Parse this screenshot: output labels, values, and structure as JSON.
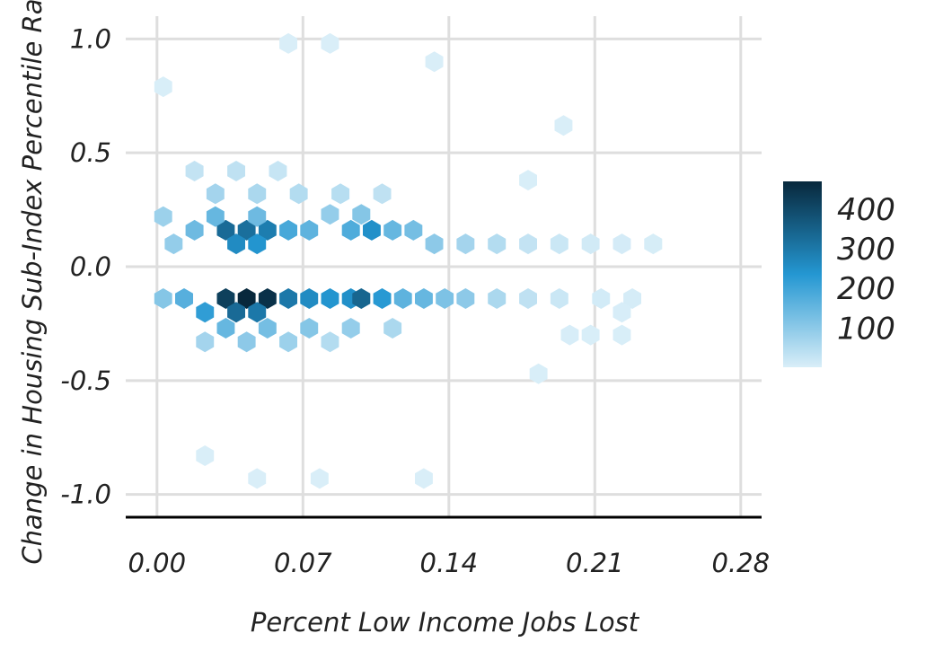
{
  "chart_data": {
    "type": "heatmap",
    "subtype": "hexbin",
    "xlabel": "Percent Low Income Jobs Lost",
    "ylabel": "Change in Housing Sub-Index Percentile Rank",
    "xlim": [
      -0.015,
      0.29
    ],
    "ylim": [
      -1.1,
      1.1
    ],
    "x_ticks": [
      0.0,
      0.07,
      0.14,
      0.21,
      0.28
    ],
    "x_tick_labels": [
      "0.00",
      "0.07",
      "0.14",
      "0.21",
      "0.28"
    ],
    "y_ticks": [
      1.0,
      0.5,
      0.0,
      -0.5,
      -1.0
    ],
    "y_tick_labels": [
      "1.0",
      "0.5",
      "0.0",
      "-0.5",
      "-1.0"
    ],
    "grid": true,
    "color_scale": {
      "low_color": "#d9eef8",
      "mid_color": "#2497d2",
      "high_color": "#08283c",
      "min": 1,
      "max": 470
    },
    "legend": {
      "position": "right",
      "ticks": [
        400,
        300,
        200,
        100
      ],
      "tick_labels": [
        "400",
        "300",
        "200",
        "100"
      ]
    },
    "bins": [
      {
        "x": 0.033,
        "y": -0.14,
        "count": 420
      },
      {
        "x": 0.043,
        "y": -0.14,
        "count": 470
      },
      {
        "x": 0.053,
        "y": -0.14,
        "count": 450
      },
      {
        "x": 0.063,
        "y": -0.14,
        "count": 300
      },
      {
        "x": 0.073,
        "y": -0.14,
        "count": 260
      },
      {
        "x": 0.083,
        "y": -0.14,
        "count": 240
      },
      {
        "x": 0.093,
        "y": -0.14,
        "count": 250
      },
      {
        "x": 0.098,
        "y": -0.14,
        "count": 340
      },
      {
        "x": 0.108,
        "y": -0.14,
        "count": 230
      },
      {
        "x": 0.118,
        "y": -0.14,
        "count": 160
      },
      {
        "x": 0.128,
        "y": -0.14,
        "count": 150
      },
      {
        "x": 0.138,
        "y": -0.14,
        "count": 120
      },
      {
        "x": 0.148,
        "y": -0.14,
        "count": 100
      },
      {
        "x": 0.038,
        "y": -0.2,
        "count": 330
      },
      {
        "x": 0.048,
        "y": -0.2,
        "count": 300
      },
      {
        "x": 0.023,
        "y": -0.2,
        "count": 220
      },
      {
        "x": 0.013,
        "y": -0.14,
        "count": 170
      },
      {
        "x": 0.003,
        "y": -0.14,
        "count": 110
      },
      {
        "x": 0.033,
        "y": 0.16,
        "count": 330
      },
      {
        "x": 0.043,
        "y": 0.16,
        "count": 320
      },
      {
        "x": 0.053,
        "y": 0.16,
        "count": 290
      },
      {
        "x": 0.038,
        "y": 0.1,
        "count": 260
      },
      {
        "x": 0.048,
        "y": 0.1,
        "count": 240
      },
      {
        "x": 0.103,
        "y": 0.16,
        "count": 250
      },
      {
        "x": 0.093,
        "y": 0.16,
        "count": 180
      },
      {
        "x": 0.063,
        "y": 0.16,
        "count": 190
      },
      {
        "x": 0.073,
        "y": 0.16,
        "count": 160
      },
      {
        "x": 0.113,
        "y": 0.16,
        "count": 150
      },
      {
        "x": 0.123,
        "y": 0.16,
        "count": 130
      },
      {
        "x": 0.028,
        "y": 0.22,
        "count": 150
      },
      {
        "x": 0.048,
        "y": 0.22,
        "count": 140
      },
      {
        "x": 0.018,
        "y": 0.16,
        "count": 140
      },
      {
        "x": 0.008,
        "y": 0.1,
        "count": 90
      },
      {
        "x": 0.003,
        "y": 0.22,
        "count": 80
      },
      {
        "x": 0.083,
        "y": 0.23,
        "count": 90
      },
      {
        "x": 0.098,
        "y": 0.23,
        "count": 110
      },
      {
        "x": 0.133,
        "y": 0.1,
        "count": 100
      },
      {
        "x": 0.148,
        "y": 0.1,
        "count": 70
      },
      {
        "x": 0.163,
        "y": 0.1,
        "count": 50
      },
      {
        "x": 0.178,
        "y": 0.1,
        "count": 30
      },
      {
        "x": 0.193,
        "y": 0.1,
        "count": 20
      },
      {
        "x": 0.208,
        "y": 0.1,
        "count": 12
      },
      {
        "x": 0.223,
        "y": 0.1,
        "count": 8
      },
      {
        "x": 0.238,
        "y": 0.1,
        "count": 5
      },
      {
        "x": 0.163,
        "y": -0.14,
        "count": 60
      },
      {
        "x": 0.178,
        "y": -0.14,
        "count": 35
      },
      {
        "x": 0.193,
        "y": -0.14,
        "count": 20
      },
      {
        "x": 0.213,
        "y": -0.14,
        "count": 10
      },
      {
        "x": 0.228,
        "y": -0.14,
        "count": 6
      },
      {
        "x": 0.223,
        "y": -0.2,
        "count": 3
      },
      {
        "x": 0.033,
        "y": -0.27,
        "count": 150
      },
      {
        "x": 0.053,
        "y": -0.27,
        "count": 130
      },
      {
        "x": 0.073,
        "y": -0.27,
        "count": 110
      },
      {
        "x": 0.093,
        "y": -0.27,
        "count": 90
      },
      {
        "x": 0.113,
        "y": -0.27,
        "count": 60
      },
      {
        "x": 0.043,
        "y": -0.33,
        "count": 100
      },
      {
        "x": 0.063,
        "y": -0.33,
        "count": 80
      },
      {
        "x": 0.023,
        "y": -0.33,
        "count": 70
      },
      {
        "x": 0.083,
        "y": -0.33,
        "count": 50
      },
      {
        "x": 0.198,
        "y": -0.3,
        "count": 3
      },
      {
        "x": 0.208,
        "y": -0.3,
        "count": 2
      },
      {
        "x": 0.223,
        "y": -0.3,
        "count": 2
      },
      {
        "x": 0.183,
        "y": -0.47,
        "count": 2
      },
      {
        "x": 0.028,
        "y": 0.32,
        "count": 70
      },
      {
        "x": 0.048,
        "y": 0.32,
        "count": 60
      },
      {
        "x": 0.068,
        "y": 0.32,
        "count": 50
      },
      {
        "x": 0.088,
        "y": 0.32,
        "count": 45
      },
      {
        "x": 0.108,
        "y": 0.32,
        "count": 35
      },
      {
        "x": 0.038,
        "y": 0.42,
        "count": 35
      },
      {
        "x": 0.018,
        "y": 0.42,
        "count": 30
      },
      {
        "x": 0.058,
        "y": 0.42,
        "count": 25
      },
      {
        "x": 0.178,
        "y": 0.38,
        "count": 2
      },
      {
        "x": 0.195,
        "y": 0.62,
        "count": 1
      },
      {
        "x": 0.063,
        "y": 0.98,
        "count": 1
      },
      {
        "x": 0.083,
        "y": 0.98,
        "count": 1
      },
      {
        "x": 0.133,
        "y": 0.9,
        "count": 1
      },
      {
        "x": 0.003,
        "y": 0.79,
        "count": 2
      },
      {
        "x": 0.048,
        "y": -0.93,
        "count": 1
      },
      {
        "x": 0.078,
        "y": -0.93,
        "count": 1
      },
      {
        "x": 0.128,
        "y": -0.93,
        "count": 1
      },
      {
        "x": 0.023,
        "y": -0.83,
        "count": 1
      }
    ]
  }
}
